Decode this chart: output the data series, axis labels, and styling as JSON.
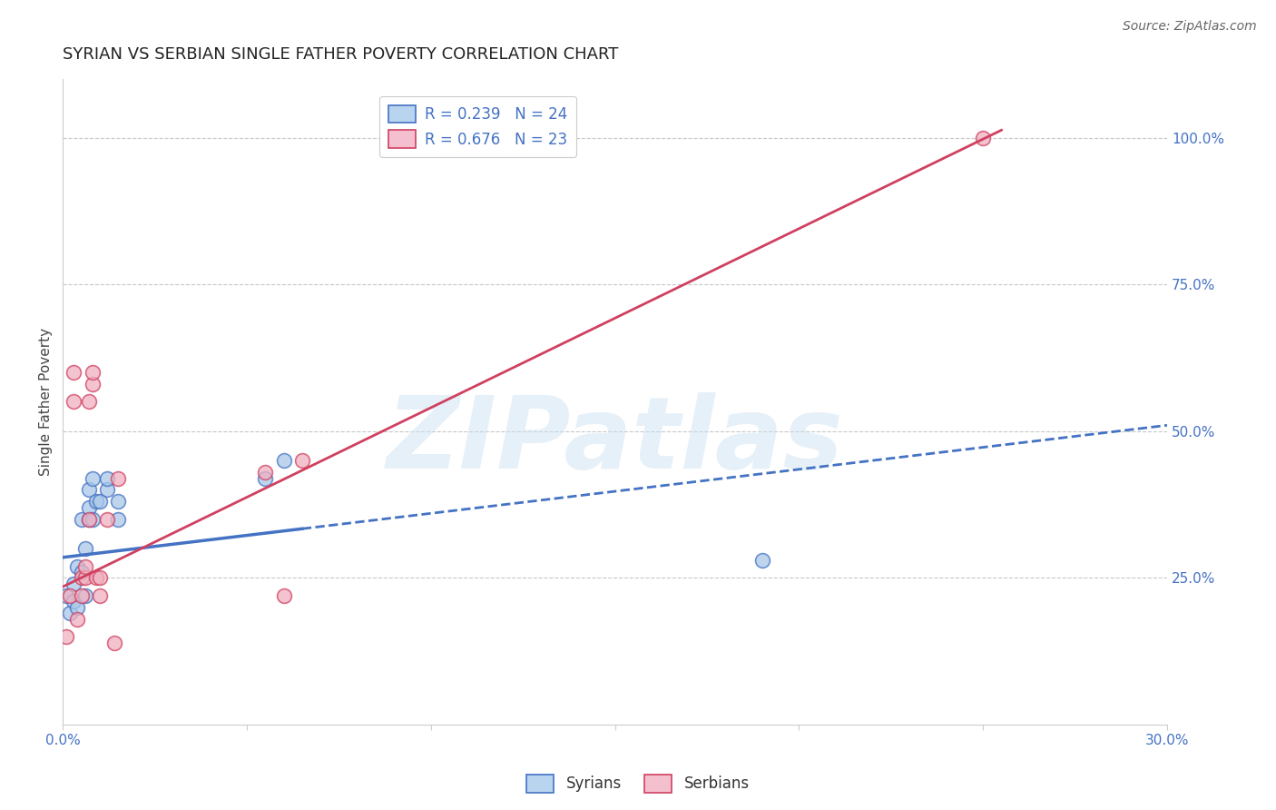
{
  "title": "SYRIAN VS SERBIAN SINGLE FATHER POVERTY CORRELATION CHART",
  "source": "Source: ZipAtlas.com",
  "ylabel": "Single Father Poverty",
  "xlim": [
    0.0,
    0.3
  ],
  "ylim": [
    0.0,
    1.1
  ],
  "ytick_positions": [
    0.25,
    0.5,
    0.75,
    1.0
  ],
  "ytick_labels": [
    "25.0%",
    "50.0%",
    "75.0%",
    "100.0%"
  ],
  "right_ytick_color": "#4472c4",
  "grid_color": "#c8c8c8",
  "background_color": "#ffffff",
  "syrian_color": "#a8c8e8",
  "serbian_color": "#f0b0c0",
  "syrian_line_color": "#4472c4",
  "serbian_line_color": "#d04060",
  "R_syrian": 0.239,
  "N_syrian": 24,
  "R_serbian": 0.676,
  "N_serbian": 23,
  "legend_label_syrian": "R = 0.239   N = 24",
  "legend_label_serbian": "R = 0.676   N = 23",
  "watermark": "ZIPatlas",
  "syrians_x": [
    0.001,
    0.002,
    0.003,
    0.003,
    0.004,
    0.004,
    0.005,
    0.005,
    0.006,
    0.006,
    0.007,
    0.007,
    0.007,
    0.008,
    0.008,
    0.009,
    0.01,
    0.012,
    0.012,
    0.015,
    0.015,
    0.055,
    0.06,
    0.19
  ],
  "syrians_y": [
    0.22,
    0.19,
    0.21,
    0.24,
    0.2,
    0.27,
    0.26,
    0.35,
    0.22,
    0.3,
    0.35,
    0.37,
    0.4,
    0.35,
    0.42,
    0.38,
    0.38,
    0.4,
    0.42,
    0.35,
    0.38,
    0.42,
    0.45,
    0.28
  ],
  "serbians_x": [
    0.001,
    0.002,
    0.003,
    0.003,
    0.004,
    0.005,
    0.005,
    0.006,
    0.006,
    0.007,
    0.007,
    0.008,
    0.008,
    0.009,
    0.01,
    0.01,
    0.012,
    0.014,
    0.015,
    0.055,
    0.06,
    0.065,
    0.25
  ],
  "serbians_y": [
    0.15,
    0.22,
    0.6,
    0.55,
    0.18,
    0.22,
    0.25,
    0.25,
    0.27,
    0.35,
    0.55,
    0.58,
    0.6,
    0.25,
    0.22,
    0.25,
    0.35,
    0.14,
    0.42,
    0.43,
    0.22,
    0.45,
    1.0
  ],
  "title_fontsize": 13,
  "axis_label_fontsize": 11,
  "tick_fontsize": 11,
  "legend_fontsize": 12,
  "source_fontsize": 10,
  "syrian_line_intercept": 0.285,
  "syrian_line_slope": 0.75,
  "serbian_line_intercept": 0.235,
  "serbian_line_slope": 3.05
}
